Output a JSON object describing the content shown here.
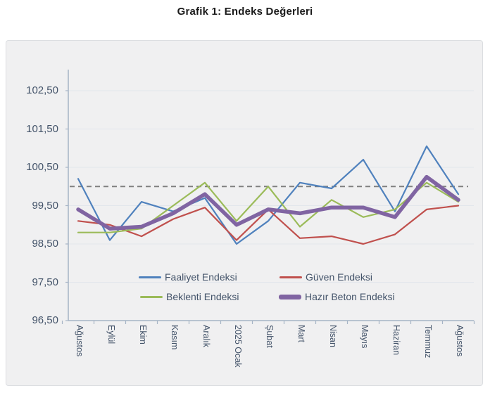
{
  "title": "Grafik 1: Endeks Değerleri",
  "chart": {
    "y_tick_labels": [
      "102,50",
      "101,50",
      "100,50",
      "99,50",
      "98,50",
      "97,50",
      "96,50"
    ],
    "background": "#f0f0f1",
    "grid_color": "#e2e6ec",
    "axis_color": "#a6b4c6",
    "label_color": "#44546a"
  },
  "chart_data": {
    "type": "line",
    "title": "Grafik 1: Endeks Değerleri",
    "categories": [
      "Ağustos",
      "Eylül",
      "Ekim",
      "Kasım",
      "Aralık",
      "2025 Ocak",
      "Şubat",
      "Mart",
      "Nisan",
      "Mayıs",
      "Haziran",
      "Temmuz",
      "Ağustos"
    ],
    "series": [
      {
        "name": "Faaliyet Endeksi",
        "color": "#4f81bd",
        "line_width": 2.2,
        "values": [
          100.2,
          98.6,
          99.6,
          99.35,
          99.7,
          98.5,
          99.1,
          100.1,
          99.95,
          100.7,
          99.35,
          101.05,
          99.8
        ]
      },
      {
        "name": "Güven Endeksi",
        "color": "#c0504d",
        "line_width": 2.2,
        "values": [
          99.1,
          99.0,
          98.7,
          99.15,
          99.45,
          98.6,
          99.4,
          98.65,
          98.7,
          98.5,
          98.75,
          99.4,
          99.5
        ]
      },
      {
        "name": "Beklenti Endeksi",
        "color": "#9bbb59",
        "line_width": 2.2,
        "values": [
          98.8,
          98.8,
          98.9,
          99.5,
          100.1,
          99.1,
          100.0,
          98.95,
          99.65,
          99.2,
          99.4,
          100.1,
          99.6
        ]
      },
      {
        "name": "Hazır Beton Endeksi",
        "color": "#8064a2",
        "line_width": 5.5,
        "values": [
          99.4,
          98.9,
          98.95,
          99.3,
          99.8,
          99.0,
          99.4,
          99.3,
          99.45,
          99.45,
          99.2,
          100.25,
          99.65
        ]
      }
    ],
    "reference_line": {
      "value": 100.0,
      "color": "#7f7f7f",
      "style": "dashed"
    },
    "ylim": [
      96.5,
      102.5
    ],
    "y_ticks": [
      96.5,
      97.5,
      98.5,
      99.5,
      100.5,
      101.5,
      102.5
    ],
    "grid": true,
    "legend_position": "inside-bottom",
    "legend_rows": [
      [
        {
          "series": 0,
          "left": 188,
          "top": 327
        },
        {
          "series": 1,
          "left": 388,
          "top": 327
        }
      ],
      [
        {
          "series": 2,
          "left": 190,
          "top": 355
        },
        {
          "series": 3,
          "top": 355,
          "left": 387
        }
      ]
    ]
  }
}
